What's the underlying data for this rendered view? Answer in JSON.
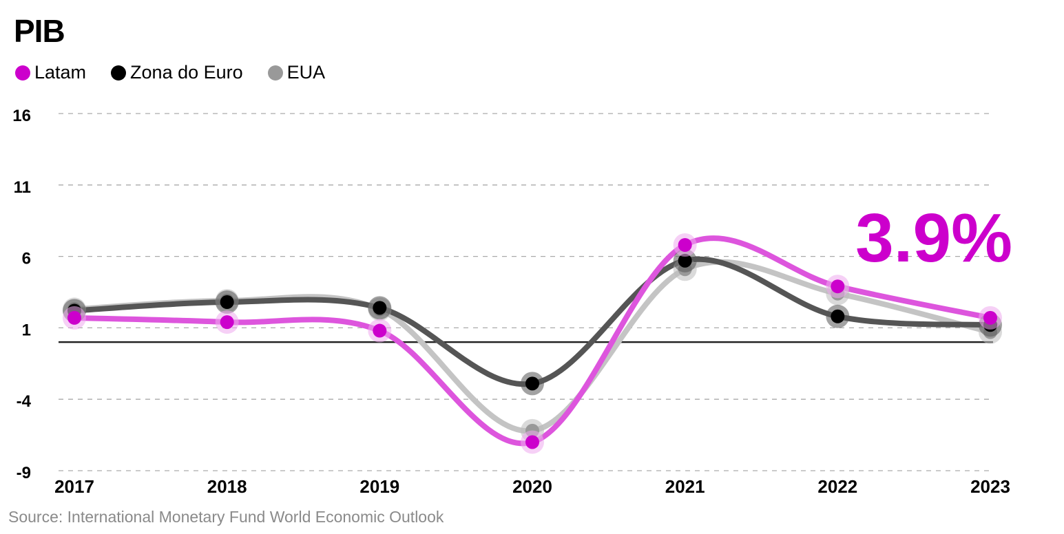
{
  "title": "PIB",
  "source": "Source: International Monetary Fund World Economic Outlook",
  "highlight_value": "3.9%",
  "colors": {
    "latam": "#cc00cc",
    "zona_do_euro": "#000000",
    "eua": "#999999",
    "highlight": "#cc00cc"
  },
  "chart_data": {
    "type": "line",
    "title": "PIB",
    "xlabel": "",
    "ylabel": "",
    "x": [
      "2017",
      "2018",
      "2019",
      "2020",
      "2021",
      "2022",
      "2023"
    ],
    "ylim": [
      -9,
      16
    ],
    "yticks": [
      16,
      11,
      6,
      1,
      -4,
      -9
    ],
    "grid": true,
    "legend_position": "top-left",
    "series": [
      {
        "name": "Latam",
        "color": "#cc00cc",
        "values": [
          1.7,
          1.4,
          0.8,
          -7.0,
          6.8,
          3.9,
          1.7
        ]
      },
      {
        "name": "Zona do Euro",
        "color": "#000000",
        "values": [
          2.2,
          2.8,
          2.4,
          -2.9,
          5.7,
          1.8,
          1.2
        ]
      },
      {
        "name": "EUA",
        "color": "#999999",
        "values": [
          2.3,
          2.9,
          2.3,
          -6.2,
          5.1,
          3.4,
          0.7
        ]
      }
    ],
    "annotation": "3.9%"
  }
}
